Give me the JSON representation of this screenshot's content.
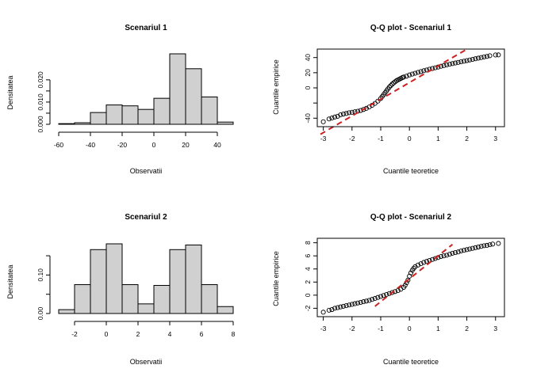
{
  "colors": {
    "bar_fill": "#d0d0d0",
    "bar_stroke": "#000000",
    "point_stroke": "#000000",
    "qq_line": "#cc2222"
  },
  "chart_data": [
    {
      "type": "bar",
      "title": "Scenariul 1",
      "xlabel": "Observatii",
      "ylabel": "Densitatea",
      "bins": [
        {
          "from": -60,
          "to": -50,
          "value": 0.0003
        },
        {
          "from": -50,
          "to": -40,
          "value": 0.0007
        },
        {
          "from": -40,
          "to": -30,
          "value": 0.0053
        },
        {
          "from": -30,
          "to": -20,
          "value": 0.0087
        },
        {
          "from": -20,
          "to": -10,
          "value": 0.0083
        },
        {
          "from": -10,
          "to": 0,
          "value": 0.0067
        },
        {
          "from": 0,
          "to": 10,
          "value": 0.0117
        },
        {
          "from": 10,
          "to": 20,
          "value": 0.0317
        },
        {
          "from": 20,
          "to": 30,
          "value": 0.025
        },
        {
          "from": 30,
          "to": 40,
          "value": 0.0123
        },
        {
          "from": 40,
          "to": 50,
          "value": 0.001
        }
      ],
      "xlim": [
        -60,
        50
      ],
      "ylim": [
        0,
        0.0317
      ],
      "x_ticks": [
        -60,
        -40,
        -20,
        0,
        20,
        40
      ],
      "y_ticks": [
        0.0,
        0.005,
        0.01,
        0.015,
        0.02
      ],
      "y_tick_labels": [
        "0.000",
        "",
        "0.010",
        "",
        "0.020"
      ],
      "x_tick_labels": [
        "-60",
        "-40",
        "-20",
        "0",
        "20",
        "40"
      ]
    },
    {
      "type": "scatter",
      "title": "Q-Q plot - Scenariul 1",
      "xlabel": "Cuantile teoretice",
      "ylabel": "Cuantile empirice",
      "xlim": [
        -3.1,
        3.2
      ],
      "ylim": [
        -47,
        47
      ],
      "x_ticks": [
        -3,
        -2,
        -1,
        0,
        1,
        2,
        3
      ],
      "y_ticks": [
        -40,
        -20,
        0,
        20,
        40
      ],
      "y_tick_labels": [
        "-40",
        "",
        "0",
        "20",
        "40"
      ],
      "x_tick_labels": [
        "-3",
        "-2",
        "-1",
        "0",
        "1",
        "2",
        "3"
      ],
      "qq_line": {
        "slope": 22.0,
        "intercept": 7.0,
        "x_range": [
          -3.1,
          2.0
        ]
      },
      "points": [
        [
          -3.0,
          -44.7
        ],
        [
          -2.8,
          -41.0
        ],
        [
          -2.7,
          -39.8
        ],
        [
          -2.6,
          -38.5
        ],
        [
          -2.5,
          -37.5
        ],
        [
          -2.4,
          -35.5
        ],
        [
          -2.3,
          -34.5
        ],
        [
          -2.2,
          -33.8
        ],
        [
          -2.1,
          -32.8
        ],
        [
          -2.0,
          -32.2
        ],
        [
          -1.9,
          -31.5
        ],
        [
          -1.8,
          -30.8
        ],
        [
          -1.7,
          -29.8
        ],
        [
          -1.6,
          -28.5
        ],
        [
          -1.5,
          -27.0
        ],
        [
          -1.4,
          -25.2
        ],
        [
          -1.3,
          -23.0
        ],
        [
          -1.2,
          -20.5
        ],
        [
          -1.1,
          -17.5
        ],
        [
          -1.0,
          -14.0
        ],
        [
          -0.95,
          -11.5
        ],
        [
          -0.9,
          -9.0
        ],
        [
          -0.85,
          -6.5
        ],
        [
          -0.8,
          -4.0
        ],
        [
          -0.75,
          -1.5
        ],
        [
          -0.7,
          1.0
        ],
        [
          -0.65,
          3.0
        ],
        [
          -0.6,
          5.0
        ],
        [
          -0.55,
          6.5
        ],
        [
          -0.5,
          8.0
        ],
        [
          -0.45,
          9.5
        ],
        [
          -0.4,
          10.5
        ],
        [
          -0.35,
          11.5
        ],
        [
          -0.3,
          12.5
        ],
        [
          -0.25,
          13.5
        ],
        [
          -0.2,
          14.3
        ],
        [
          -0.1,
          15.5
        ],
        [
          0.0,
          17.0
        ],
        [
          0.1,
          18.2
        ],
        [
          0.2,
          19.3
        ],
        [
          0.3,
          20.5
        ],
        [
          0.4,
          21.5
        ],
        [
          0.5,
          22.6
        ],
        [
          0.6,
          23.6
        ],
        [
          0.7,
          24.6
        ],
        [
          0.8,
          25.5
        ],
        [
          0.9,
          26.5
        ],
        [
          1.0,
          27.5
        ],
        [
          1.1,
          28.5
        ],
        [
          1.2,
          29.4
        ],
        [
          1.3,
          30.3
        ],
        [
          1.4,
          31.2
        ],
        [
          1.5,
          32.0
        ],
        [
          1.6,
          32.8
        ],
        [
          1.7,
          33.6
        ],
        [
          1.8,
          34.4
        ],
        [
          1.9,
          35.2
        ],
        [
          2.0,
          36.0
        ],
        [
          2.1,
          36.8
        ],
        [
          2.2,
          37.6
        ],
        [
          2.3,
          38.4
        ],
        [
          2.4,
          39.2
        ],
        [
          2.5,
          40.0
        ],
        [
          2.6,
          40.8
        ],
        [
          2.7,
          41.5
        ],
        [
          2.8,
          42.4
        ],
        [
          3.0,
          43.4
        ],
        [
          3.1,
          43.5
        ]
      ]
    },
    {
      "type": "bar",
      "title": "Scenariul 2",
      "xlabel": "Observatii",
      "ylabel": "Densitatea",
      "bins": [
        {
          "from": -3,
          "to": -2,
          "value": 0.01
        },
        {
          "from": -2,
          "to": -1,
          "value": 0.075
        },
        {
          "from": -1,
          "to": 0,
          "value": 0.166
        },
        {
          "from": 0,
          "to": 1,
          "value": 0.181
        },
        {
          "from": 1,
          "to": 2,
          "value": 0.075
        },
        {
          "from": 2,
          "to": 3,
          "value": 0.025
        },
        {
          "from": 3,
          "to": 4,
          "value": 0.073
        },
        {
          "from": 4,
          "to": 5,
          "value": 0.166
        },
        {
          "from": 5,
          "to": 6,
          "value": 0.178
        },
        {
          "from": 6,
          "to": 7,
          "value": 0.075
        },
        {
          "from": 7,
          "to": 8,
          "value": 0.018
        }
      ],
      "xlim": [
        -3,
        8
      ],
      "ylim": [
        0,
        0.181
      ],
      "x_ticks": [
        -2,
        0,
        2,
        4,
        6,
        8
      ],
      "y_ticks": [
        0.0,
        0.05,
        0.1,
        0.15
      ],
      "y_tick_labels": [
        "0.00",
        "",
        "0.10",
        ""
      ],
      "x_tick_labels": [
        "-2",
        "0",
        "2",
        "4",
        "6",
        "8"
      ]
    },
    {
      "type": "scatter",
      "title": "Q-Q plot - Scenariul 2",
      "xlabel": "Cuantile teoretice",
      "ylabel": "Cuantile empirice",
      "xlim": [
        -3.1,
        3.2
      ],
      "ylim": [
        -2.8,
        8.2
      ],
      "x_ticks": [
        -3,
        -2,
        -1,
        0,
        1,
        2,
        3
      ],
      "y_ticks": [
        -2,
        0,
        2,
        4,
        6,
        8
      ],
      "y_tick_labels": [
        "-2",
        "0",
        "2",
        "4",
        "6",
        "8"
      ],
      "x_tick_labels": [
        "-3",
        "-2",
        "-1",
        "0",
        "1",
        "2",
        "3"
      ],
      "qq_line": {
        "slope": 3.5,
        "intercept": 2.5,
        "x_range": [
          -1.2,
          1.5
        ]
      },
      "points": [
        [
          -3.0,
          -2.6
        ],
        [
          -2.8,
          -2.3
        ],
        [
          -2.7,
          -2.2
        ],
        [
          -2.6,
          -2.0
        ],
        [
          -2.5,
          -1.9
        ],
        [
          -2.4,
          -1.8
        ],
        [
          -2.3,
          -1.7
        ],
        [
          -2.2,
          -1.6
        ],
        [
          -2.1,
          -1.5
        ],
        [
          -2.0,
          -1.4
        ],
        [
          -1.9,
          -1.3
        ],
        [
          -1.8,
          -1.2
        ],
        [
          -1.7,
          -1.1
        ],
        [
          -1.6,
          -1.0
        ],
        [
          -1.5,
          -0.9
        ],
        [
          -1.4,
          -0.8
        ],
        [
          -1.3,
          -0.65
        ],
        [
          -1.2,
          -0.5
        ],
        [
          -1.1,
          -0.35
        ],
        [
          -1.0,
          -0.2
        ],
        [
          -0.9,
          -0.05
        ],
        [
          -0.8,
          0.1
        ],
        [
          -0.7,
          0.25
        ],
        [
          -0.6,
          0.4
        ],
        [
          -0.5,
          0.55
        ],
        [
          -0.4,
          0.7
        ],
        [
          -0.3,
          0.9
        ],
        [
          -0.2,
          1.2
        ],
        [
          -0.15,
          1.5
        ],
        [
          -0.1,
          1.9
        ],
        [
          -0.05,
          2.3
        ],
        [
          0.0,
          2.9
        ],
        [
          0.05,
          3.4
        ],
        [
          0.1,
          3.8
        ],
        [
          0.15,
          4.1
        ],
        [
          0.2,
          4.35
        ],
        [
          0.3,
          4.6
        ],
        [
          0.4,
          4.8
        ],
        [
          0.5,
          5.0
        ],
        [
          0.6,
          5.15
        ],
        [
          0.7,
          5.3
        ],
        [
          0.8,
          5.45
        ],
        [
          0.9,
          5.6
        ],
        [
          1.0,
          5.75
        ],
        [
          1.1,
          5.9
        ],
        [
          1.2,
          6.0
        ],
        [
          1.3,
          6.1
        ],
        [
          1.4,
          6.25
        ],
        [
          1.5,
          6.4
        ],
        [
          1.6,
          6.5
        ],
        [
          1.7,
          6.6
        ],
        [
          1.8,
          6.75
        ],
        [
          1.9,
          6.85
        ],
        [
          2.0,
          6.95
        ],
        [
          2.1,
          7.05
        ],
        [
          2.2,
          7.15
        ],
        [
          2.3,
          7.25
        ],
        [
          2.4,
          7.35
        ],
        [
          2.5,
          7.45
        ],
        [
          2.6,
          7.55
        ],
        [
          2.7,
          7.6
        ],
        [
          2.8,
          7.7
        ],
        [
          2.9,
          7.8
        ],
        [
          3.1,
          7.9
        ]
      ]
    }
  ]
}
